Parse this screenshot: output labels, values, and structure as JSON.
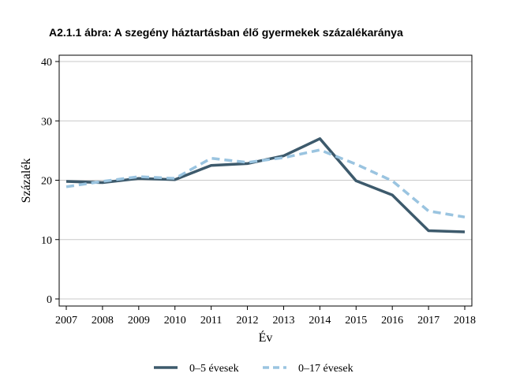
{
  "chart_data": {
    "type": "line",
    "title": "A2.1.1 ábra: A szegény háztartásban élő gyermekek százalékaránya",
    "xlabel": "Év",
    "ylabel": "Százalék",
    "x": [
      2007,
      2008,
      2009,
      2010,
      2011,
      2012,
      2013,
      2014,
      2015,
      2016,
      2017,
      2018
    ],
    "x_labels": [
      "2007",
      "2008",
      "2009",
      "2010",
      "2011",
      "2012",
      "2013",
      "2014",
      "2015",
      "2016",
      "2017",
      "2018"
    ],
    "ylim": [
      0,
      40
    ],
    "yticks": [
      0,
      10,
      20,
      30,
      40
    ],
    "ytick_labels": [
      "0",
      "10",
      "20",
      "30",
      "40"
    ],
    "grid": true,
    "legend_position": "bottom",
    "series": [
      {
        "name": "0–5 évesek",
        "color": "#3d5a6c",
        "dash": "solid",
        "values": [
          19.8,
          19.6,
          20.3,
          20.1,
          22.5,
          22.8,
          24.1,
          27.0,
          19.9,
          17.5,
          11.5,
          11.3
        ]
      },
      {
        "name": "0–17 évesek",
        "color": "#9ac4e0",
        "dash": "dashed",
        "values": [
          18.9,
          19.8,
          20.6,
          20.3,
          23.7,
          23.0,
          23.8,
          25.1,
          22.7,
          19.9,
          14.8,
          13.8
        ]
      }
    ]
  }
}
